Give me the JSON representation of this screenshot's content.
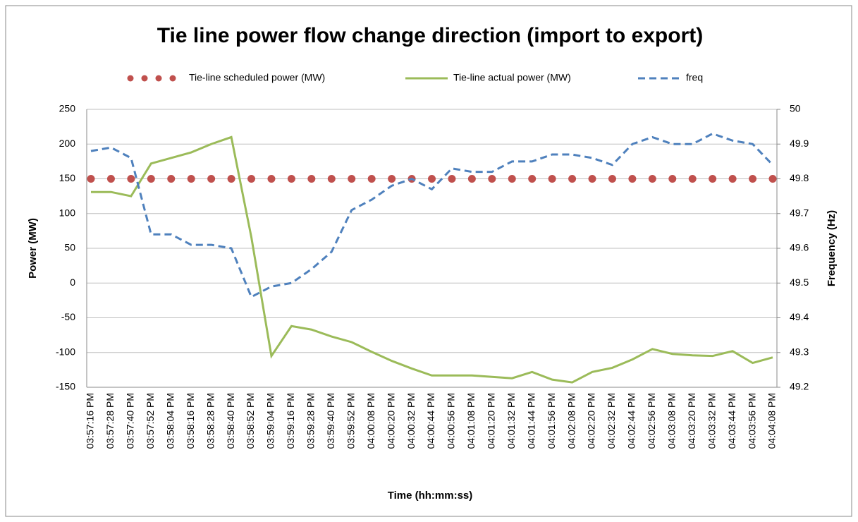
{
  "chart_data": {
    "type": "line",
    "title": "Tie line power flow change direction (import to export)",
    "x_label": "Time (hh:mm:ss)",
    "y_label": "Power (MW)",
    "y2_label": "Frequency (Hz)",
    "categories": [
      "03:57:16 PM",
      "03:57:28 PM",
      "03:57:40 PM",
      "03:57:52 PM",
      "03:58:04 PM",
      "03:58:16 PM",
      "03:58:28 PM",
      "03:58:40 PM",
      "03:58:52 PM",
      "03:59:04 PM",
      "03:59:16 PM",
      "03:59:28 PM",
      "03:59:40 PM",
      "03:59:52 PM",
      "04:00:08 PM",
      "04:00:20 PM",
      "04:00:32 PM",
      "04:00:44 PM",
      "04:00:56 PM",
      "04:01:08 PM",
      "04:01:20 PM",
      "04:01:32 PM",
      "04:01:44 PM",
      "04:01:56 PM",
      "04:02:08 PM",
      "04:02:20 PM",
      "04:02:32 PM",
      "04:02:44 PM",
      "04:02:56 PM",
      "04:03:08 PM",
      "04:03:20 PM",
      "04:03:32 PM",
      "04:03:44 PM",
      "04:03:56 PM",
      "04:04:08 PM"
    ],
    "series": [
      {
        "name": "Tie-line scheduled power (MW)",
        "color": "#c0504d",
        "line_style": "dots",
        "values": [
          150,
          150,
          150,
          150,
          150,
          150,
          150,
          150,
          150,
          150,
          150,
          150,
          150,
          150,
          150,
          150,
          150,
          150,
          150,
          150,
          150,
          150,
          150,
          150,
          150,
          150,
          150,
          150,
          150,
          150,
          150,
          150,
          150,
          150,
          150
        ]
      },
      {
        "name": "Tie-line actual power (MW)",
        "color": "#9bbb59",
        "line_style": "solid",
        "values": [
          131,
          131,
          125,
          172,
          180,
          188,
          200,
          210,
          66,
          -105,
          -62,
          -67,
          -77,
          -85,
          -99,
          -112,
          -123,
          -133,
          -133,
          -133,
          -135,
          -137,
          -128,
          -139,
          -143,
          -128,
          -122,
          -110,
          -95,
          -102,
          -104,
          -105,
          -98,
          -115,
          -107
        ]
      },
      {
        "name": "freq",
        "color": "#4f81bd",
        "line_style": "dashed",
        "axis": "y2",
        "values": [
          49.88,
          49.89,
          49.86,
          49.64,
          49.64,
          49.61,
          49.61,
          49.6,
          49.46,
          49.49,
          49.5,
          49.54,
          49.59,
          49.71,
          49.74,
          49.78,
          49.8,
          49.77,
          49.83,
          49.82,
          49.82,
          49.85,
          49.85,
          49.87,
          49.87,
          49.86,
          49.84,
          49.9,
          49.92,
          49.9,
          49.9,
          49.93,
          49.91,
          49.9,
          49.84
        ]
      }
    ],
    "ylim": [
      -150,
      250
    ],
    "yticks": [
      -150,
      -100,
      -50,
      0,
      50,
      100,
      150,
      200,
      250
    ],
    "y2lim": [
      49.2,
      50
    ],
    "y2ticks": [
      49.2,
      49.3,
      49.4,
      49.5,
      49.6,
      49.7,
      49.8,
      49.9,
      50
    ],
    "grid": true,
    "legend": "top"
  }
}
